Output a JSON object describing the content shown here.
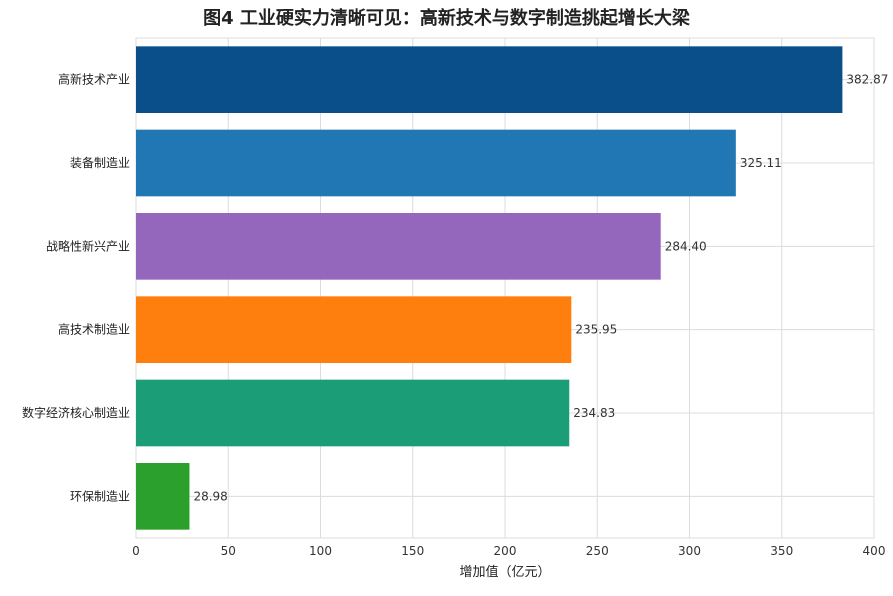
{
  "chart_data": {
    "type": "bar",
    "orientation": "horizontal",
    "title": "图4 工业硬实力清晰可见：高新技术与数字制造挑起增长大梁",
    "xlabel": "增加值（亿元）",
    "ylabel": "",
    "xlim": [
      0,
      400
    ],
    "xticks": [
      0,
      50,
      100,
      150,
      200,
      250,
      300,
      350,
      400
    ],
    "grid": true,
    "categories": [
      "高新技术产业",
      "装备制造业",
      "战略性新兴产业",
      "高技术制造业",
      "数字经济核心制造业",
      "环保制造业"
    ],
    "values": [
      382.87,
      325.11,
      284.4,
      235.95,
      234.83,
      28.98
    ],
    "value_labels": [
      "382.87",
      "325.11",
      "284.40",
      "235.95",
      "234.83",
      "28.98"
    ],
    "colors": [
      "#0b4f8a",
      "#2077b4",
      "#9467bd",
      "#ff7f0e",
      "#1b9e77",
      "#2ca02c"
    ]
  }
}
